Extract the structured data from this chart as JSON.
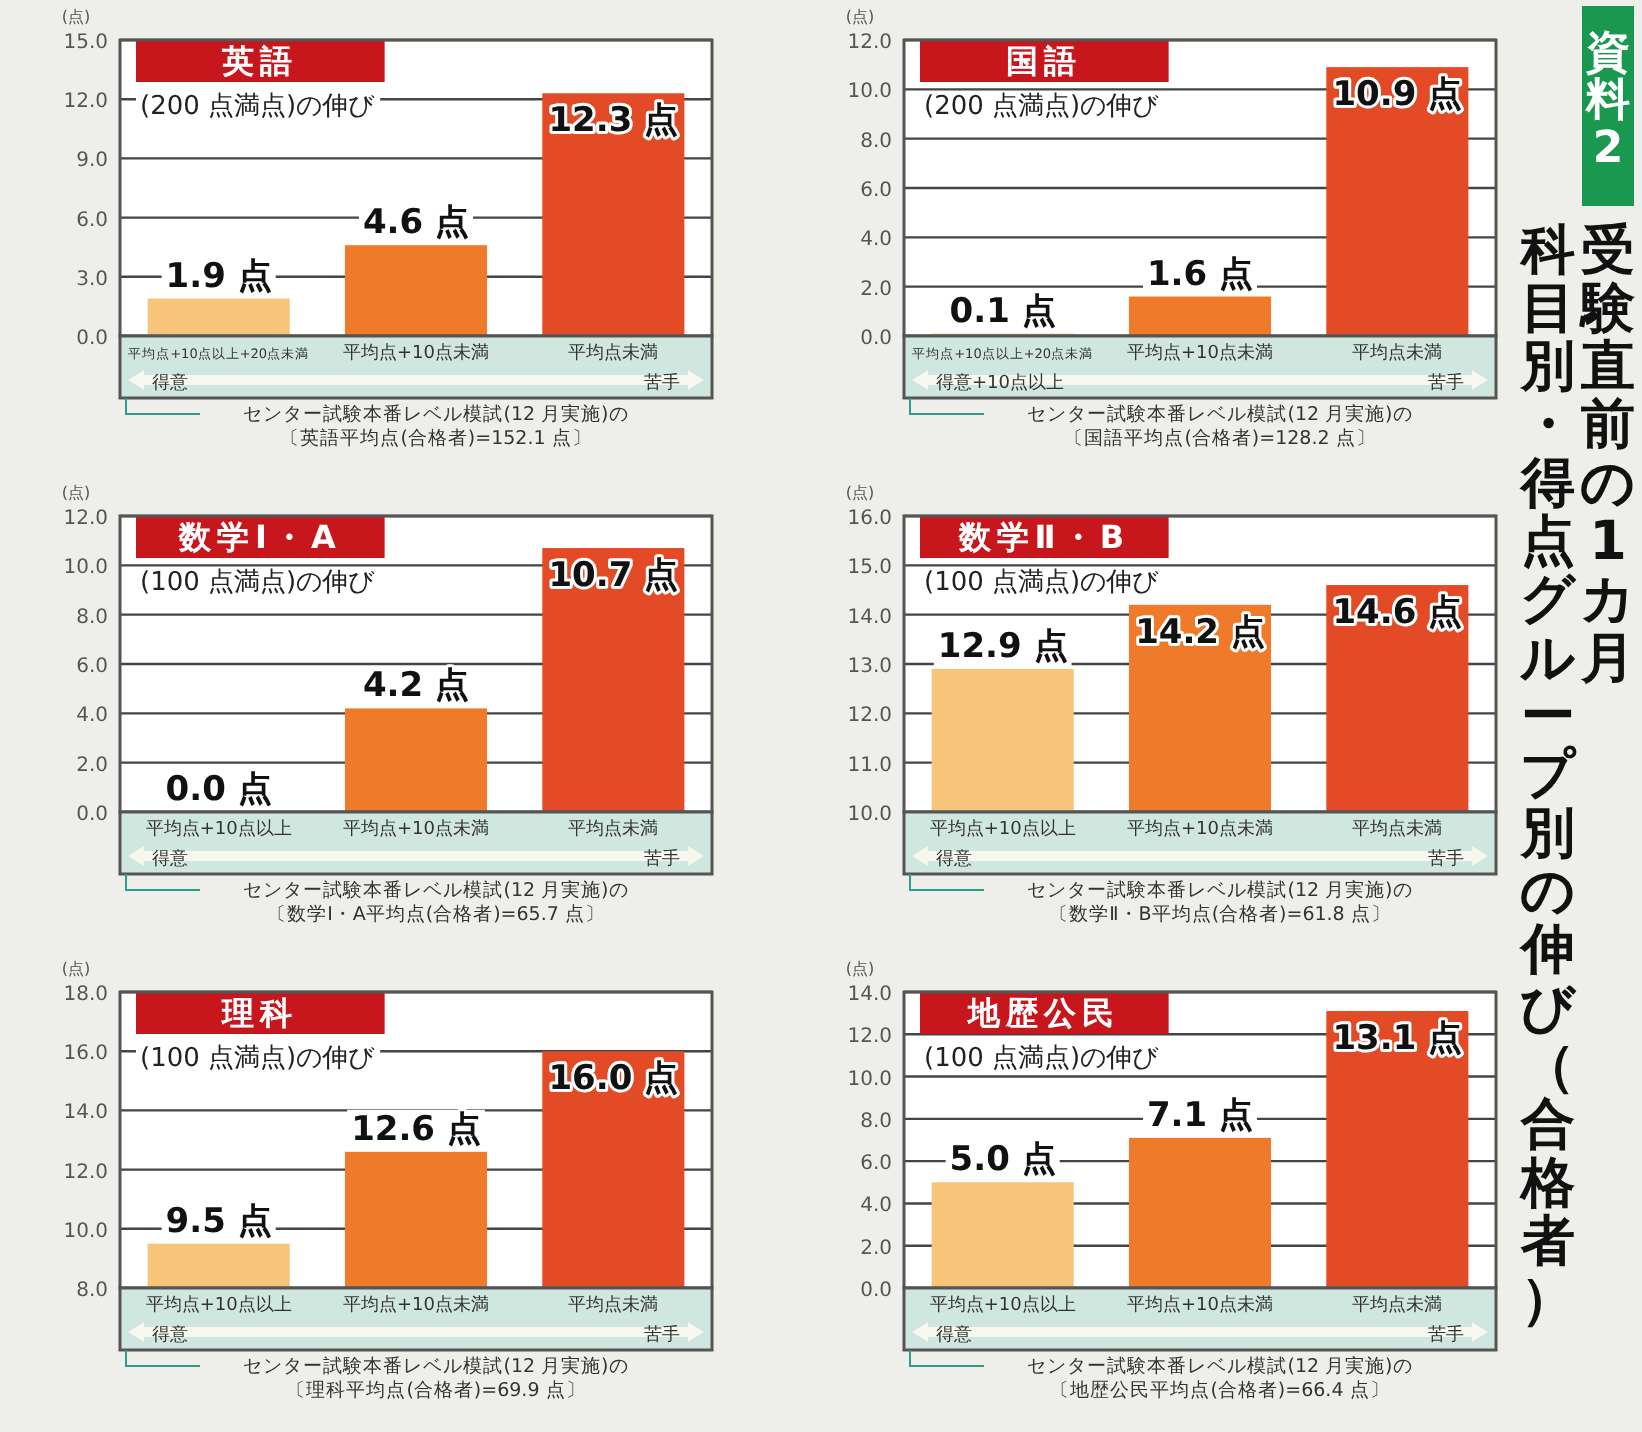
{
  "chart_data": [
    {
      "type": "bar",
      "title": "英語",
      "subtitle": "(200 点満点)の伸び",
      "ylabel": "(点)",
      "categories": [
        "平均点+10点以上+20点未満",
        "平均点+10点未満",
        "平均点未満"
      ],
      "values": [
        1.9,
        4.6,
        12.3
      ],
      "value_labels": [
        "1.9 点",
        "4.6 点",
        "12.3 点"
      ],
      "colors": [
        "#f7c57a",
        "#ee7a2a",
        "#e34a26"
      ],
      "ylim": [
        0,
        15
      ],
      "yticks": [
        {
          "value": 0,
          "label": "0.0"
        },
        {
          "value": 3,
          "label": "3.0"
        },
        {
          "value": 6,
          "label": "6.0"
        },
        {
          "value": 9,
          "label": "9.0"
        },
        {
          "value": 12,
          "label": "12.0"
        },
        {
          "value": 15,
          "label": "15.0"
        }
      ],
      "grid": "y",
      "annotations": [
        "得意",
        "苦手",
        "センター試験本番レベル模試(12 月実施)の",
        "〔英語平均点(合格者)=152.1 点〕"
      ]
    },
    {
      "type": "bar",
      "title": "国語",
      "subtitle": "(200 点満点)の伸び",
      "ylabel": "(点)",
      "categories": [
        "平均点+10点以上+20点未満",
        "平均点+10点未満",
        "平均点未満"
      ],
      "values": [
        0.1,
        1.6,
        10.9
      ],
      "value_labels": [
        "0.1 点",
        "1.6 点",
        "10.9 点"
      ],
      "colors": [
        "#f7c57a",
        "#ee7a2a",
        "#e34a26"
      ],
      "ylim": [
        0,
        12
      ],
      "yticks": [
        {
          "value": 0,
          "label": "0.0"
        },
        {
          "value": 2,
          "label": "2.0"
        },
        {
          "value": 4,
          "label": "4.0"
        },
        {
          "value": 6,
          "label": "6.0"
        },
        {
          "value": 8,
          "label": "8.0"
        },
        {
          "value": 10,
          "label": "10.0"
        },
        {
          "value": 12,
          "label": "12.0"
        }
      ],
      "grid": "y",
      "annotations": [
        "得意+10点以上",
        "苦手",
        "センター試験本番レベル模試(12 月実施)の",
        "〔国語平均点(合格者)=128.2 点〕"
      ]
    },
    {
      "type": "bar",
      "title": "数学Ⅰ・A",
      "subtitle": "(100 点満点)の伸び",
      "ylabel": "(点)",
      "categories": [
        "平均点+10点以上",
        "平均点+10点未満",
        "平均点未満"
      ],
      "values": [
        0.0,
        4.2,
        10.7
      ],
      "value_labels": [
        "0.0 点",
        "4.2 点",
        "10.7 点"
      ],
      "colors": [
        "#f7c57a",
        "#ee7a2a",
        "#e34a26"
      ],
      "ylim": [
        0,
        12
      ],
      "yticks": [
        {
          "value": 0,
          "label": "0.0"
        },
        {
          "value": 2,
          "label": "2.0"
        },
        {
          "value": 4,
          "label": "4.0"
        },
        {
          "value": 6,
          "label": "6.0"
        },
        {
          "value": 8,
          "label": "8.0"
        },
        {
          "value": 10,
          "label": "10.0"
        },
        {
          "value": 12,
          "label": "12.0"
        }
      ],
      "grid": "y",
      "annotations": [
        "得意",
        "苦手",
        "センター試験本番レベル模試(12 月実施)の",
        "〔数学Ⅰ・A平均点(合格者)=65.7 点〕"
      ]
    },
    {
      "type": "bar",
      "title": "数学Ⅱ・B",
      "subtitle": "(100 点満点)の伸び",
      "ylabel": "(点)",
      "categories": [
        "平均点+10点以上",
        "平均点+10点未満",
        "平均点未満"
      ],
      "values": [
        12.9,
        14.2,
        14.6
      ],
      "value_labels": [
        "12.9 点",
        "14.2 点",
        "14.6 点"
      ],
      "colors": [
        "#f7c57a",
        "#ee7a2a",
        "#e34a26"
      ],
      "ylim": [
        10,
        16
      ],
      "yticks": [
        {
          "value": 10,
          "label": "10.0"
        },
        {
          "value": 11,
          "label": "11.0"
        },
        {
          "value": 12,
          "label": "12.0"
        },
        {
          "value": 13,
          "label": "13.0"
        },
        {
          "value": 14,
          "label": "14.0"
        },
        {
          "value": 15,
          "label": "15.0"
        },
        {
          "value": 16,
          "label": "16.0"
        }
      ],
      "grid": "y",
      "annotations": [
        "得意",
        "苦手",
        "センター試験本番レベル模試(12 月実施)の",
        "〔数学Ⅱ・B平均点(合格者)=61.8 点〕"
      ]
    },
    {
      "type": "bar",
      "title": "理科",
      "subtitle": "(100 点満点)の伸び",
      "ylabel": "(点)",
      "categories": [
        "平均点+10点以上",
        "平均点+10点未満",
        "平均点未満"
      ],
      "values": [
        9.5,
        12.6,
        16.0
      ],
      "value_labels": [
        "9.5 点",
        "12.6 点",
        "16.0 点"
      ],
      "colors": [
        "#f7c57a",
        "#ee7a2a",
        "#e34a26"
      ],
      "ylim": [
        8,
        18
      ],
      "yticks": [
        {
          "value": 8,
          "label": "8.0"
        },
        {
          "value": 10,
          "label": "10.0"
        },
        {
          "value": 12,
          "label": "12.0"
        },
        {
          "value": 14,
          "label": "14.0"
        },
        {
          "value": 16,
          "label": "16.0"
        },
        {
          "value": 18,
          "label": "18.0"
        }
      ],
      "grid": "y",
      "annotations": [
        "得意",
        "苦手",
        "センター試験本番レベル模試(12 月実施)の",
        "〔理科平均点(合格者)=69.9 点〕"
      ]
    },
    {
      "type": "bar",
      "title": "地歴公民",
      "subtitle": "(100 点満点)の伸び",
      "ylabel": "(点)",
      "categories": [
        "平均点+10点以上",
        "平均点+10点未満",
        "平均点未満"
      ],
      "values": [
        5.0,
        7.1,
        13.1
      ],
      "value_labels": [
        "5.0 点",
        "7.1 点",
        "13.1 点"
      ],
      "colors": [
        "#f7c57a",
        "#ee7a2a",
        "#e34a26"
      ],
      "ylim": [
        0,
        14
      ],
      "yticks": [
        {
          "value": 0,
          "label": "0.0"
        },
        {
          "value": 2,
          "label": "2.0"
        },
        {
          "value": 4,
          "label": "4.0"
        },
        {
          "value": 6,
          "label": "6.0"
        },
        {
          "value": 8,
          "label": "8.0"
        },
        {
          "value": 10,
          "label": "10.0"
        },
        {
          "value": 12,
          "label": "12.0"
        },
        {
          "value": 14,
          "label": "14.0"
        }
      ],
      "grid": "y",
      "annotations": [
        "得意",
        "苦手",
        "センター試験本番レベル模試(12 月実施)の",
        "〔地歴公民平均点(合格者)=66.4 点〕"
      ]
    },
    {
      "type": "other",
      "title": "受験直前の1カ月",
      "subtitle": "科目別・得点グループ別の伸び（合格者）",
      "annotations": [
        "資料2"
      ]
    }
  ]
}
